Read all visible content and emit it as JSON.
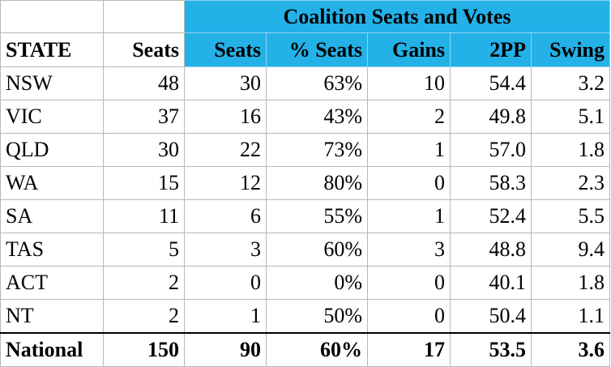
{
  "banner": "Coalition Seats and Votes",
  "headers": {
    "state": "STATE",
    "seats": "Seats",
    "coalition_seats": "Seats",
    "pct_seats": "% Seats",
    "gains": "Gains",
    "tpp": "2PP",
    "swing": "Swing"
  },
  "rows": [
    {
      "state": "NSW",
      "seats": "48",
      "coalition_seats": "30",
      "pct_seats": "63%",
      "gains": "10",
      "tpp": "54.4",
      "swing": "3.2"
    },
    {
      "state": "VIC",
      "seats": "37",
      "coalition_seats": "16",
      "pct_seats": "43%",
      "gains": "2",
      "tpp": "49.8",
      "swing": "5.1"
    },
    {
      "state": "QLD",
      "seats": "30",
      "coalition_seats": "22",
      "pct_seats": "73%",
      "gains": "1",
      "tpp": "57.0",
      "swing": "1.8"
    },
    {
      "state": "WA",
      "seats": "15",
      "coalition_seats": "12",
      "pct_seats": "80%",
      "gains": "0",
      "tpp": "58.3",
      "swing": "2.3"
    },
    {
      "state": "SA",
      "seats": "11",
      "coalition_seats": "6",
      "pct_seats": "55%",
      "gains": "1",
      "tpp": "52.4",
      "swing": "5.5"
    },
    {
      "state": "TAS",
      "seats": "5",
      "coalition_seats": "3",
      "pct_seats": "60%",
      "gains": "3",
      "tpp": "48.8",
      "swing": "9.4"
    },
    {
      "state": "ACT",
      "seats": "2",
      "coalition_seats": "0",
      "pct_seats": "0%",
      "gains": "0",
      "tpp": "40.1",
      "swing": "1.8"
    },
    {
      "state": "NT",
      "seats": "2",
      "coalition_seats": "1",
      "pct_seats": "50%",
      "gains": "0",
      "tpp": "50.4",
      "swing": "1.1"
    }
  ],
  "total": {
    "state": "National",
    "seats": "150",
    "coalition_seats": "90",
    "pct_seats": "60%",
    "gains": "17",
    "tpp": "53.5",
    "swing": "3.6"
  },
  "colors": {
    "header_blue": "#23b1e8"
  }
}
